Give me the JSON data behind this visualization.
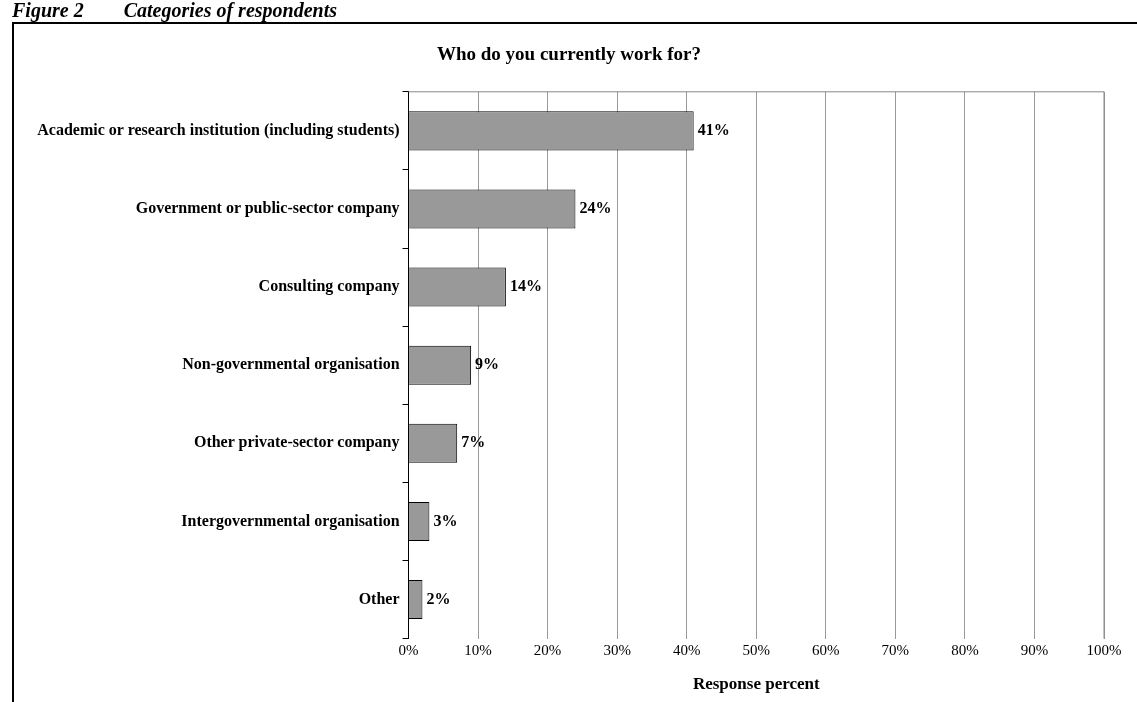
{
  "chart_data": {
    "type": "bar",
    "orientation": "horizontal",
    "title": "Who do you currently work for?",
    "xlabel": "Response percent",
    "annotations": [
      "Figure 2        Categories of respondents"
    ],
    "categories": [
      "Academic or research institution (including students)",
      "Government or public-sector company",
      "Consulting company",
      "Non-governmental organisation",
      "Other private-sector company",
      "Intergovernmental organisation",
      "Other"
    ],
    "values": [
      41,
      24,
      14,
      9,
      7,
      3,
      2
    ],
    "value_labels": [
      "41%",
      "24%",
      "14%",
      "9%",
      "7%",
      "3%",
      "2%"
    ],
    "color": "#999999",
    "xlim": [
      0,
      100
    ],
    "xticks": [
      {
        "value": 0,
        "label": "0%"
      },
      {
        "value": 10,
        "label": "10%"
      },
      {
        "value": 20,
        "label": "20%"
      },
      {
        "value": 30,
        "label": "30%"
      },
      {
        "value": 40,
        "label": "40%"
      },
      {
        "value": 50,
        "label": "50%"
      },
      {
        "value": 60,
        "label": "60%"
      },
      {
        "value": 70,
        "label": "70%"
      },
      {
        "value": 80,
        "label": "80%"
      },
      {
        "value": 90,
        "label": "90%"
      },
      {
        "value": 100,
        "label": "100%"
      }
    ],
    "grid": "x",
    "legend": false
  }
}
